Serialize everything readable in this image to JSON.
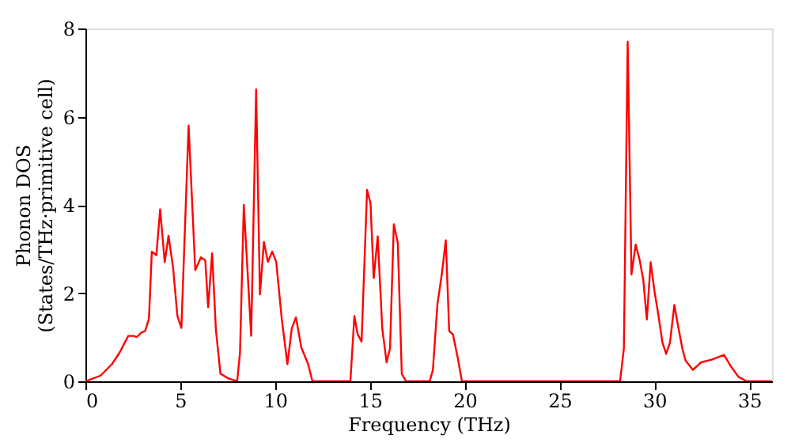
{
  "chart_data": {
    "type": "line",
    "xlabel": "Frequency (THz)",
    "ylabel": "Phonon DOS\n(States/THz·primitive cell)",
    "xlim": [
      0,
      36.2
    ],
    "xticks": [
      0,
      5,
      10,
      15,
      20,
      25,
      30,
      35
    ],
    "ylim": [
      0,
      8
    ],
    "yticks": [
      0,
      2,
      4,
      6,
      8
    ],
    "grid": false,
    "line_style": "solid",
    "series": [
      {
        "color": "#ff0000",
        "x": [
          0,
          0.8,
          1.4,
          1.8,
          2.26,
          2.56,
          2.7,
          2.94,
          3.15,
          3.35,
          3.5,
          3.74,
          3.94,
          4.18,
          4.38,
          4.62,
          4.85,
          5.06,
          5.44,
          5.79,
          6.09,
          6.32,
          6.47,
          6.68,
          6.88,
          7.12,
          7.56,
          8.0,
          8.15,
          8.35,
          8.74,
          9.0,
          9.2,
          9.41,
          9.62,
          9.85,
          10.06,
          10.35,
          10.65,
          10.88,
          11.1,
          11.38,
          11.74,
          11.97,
          13.97,
          14.18,
          14.35,
          14.56,
          14.85,
          15.03,
          15.2,
          15.41,
          15.65,
          15.88,
          16.06,
          16.26,
          16.47,
          16.68,
          16.91,
          18.15,
          18.32,
          18.56,
          18.79,
          19.0,
          19.18,
          19.38,
          19.65,
          19.85,
          28.19,
          28.39,
          28.59,
          28.79,
          29.01,
          29.21,
          29.41,
          29.6,
          29.8,
          30.0,
          30.2,
          30.42,
          30.62,
          30.82,
          31.05,
          31.24,
          31.47,
          31.64,
          32.03,
          32.46,
          33.02,
          33.67,
          34.0,
          34.43,
          34.86,
          36.2
        ],
        "values": [
          0,
          0.13,
          0.39,
          0.65,
          1.03,
          1.03,
          1.0,
          1.1,
          1.14,
          1.42,
          2.94,
          2.86,
          3.9,
          2.7,
          3.3,
          2.58,
          1.48,
          1.21,
          5.8,
          2.52,
          2.81,
          2.74,
          1.68,
          2.9,
          1.16,
          0.17,
          0.06,
          0,
          0.65,
          4.0,
          1.03,
          6.62,
          1.97,
          3.16,
          2.71,
          2.94,
          2.71,
          1.42,
          0.39,
          1.2,
          1.45,
          0.77,
          0.39,
          0,
          0,
          1.48,
          1.07,
          0.9,
          4.34,
          4.04,
          2.34,
          3.29,
          1.2,
          0.43,
          0.75,
          3.56,
          3.14,
          0.17,
          0,
          0,
          0.26,
          1.75,
          2.43,
          3.2,
          1.14,
          1.06,
          0.49,
          0,
          0,
          0.75,
          7.7,
          2.42,
          3.1,
          2.77,
          2.31,
          1.4,
          2.7,
          2.05,
          1.53,
          0.88,
          0.62,
          0.88,
          1.73,
          1.27,
          0.75,
          0.47,
          0.26,
          0.43,
          0.49,
          0.6,
          0.36,
          0.1,
          0,
          0
        ]
      }
    ]
  }
}
